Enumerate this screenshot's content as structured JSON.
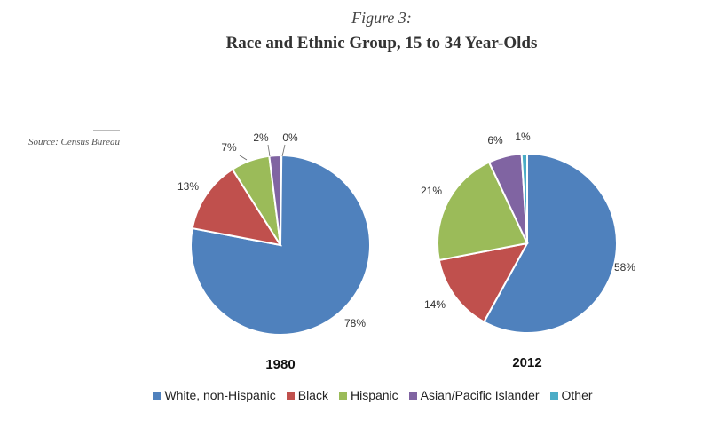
{
  "figure": {
    "label": "Figure 3:",
    "title": "Race and Ethnic Group, 15 to 34 Year-Olds",
    "source": "Source: Census Bureau"
  },
  "chart_data": [
    {
      "type": "pie",
      "title": "1980",
      "categories": [
        "White, non-Hispanic",
        "Black",
        "Hispanic",
        "Asian/Pacific Islander",
        "Other"
      ],
      "values": [
        78,
        13,
        7,
        2,
        0
      ],
      "labels": [
        "78%",
        "13%",
        "7%",
        "2%",
        "0%"
      ]
    },
    {
      "type": "pie",
      "title": "2012",
      "categories": [
        "White, non-Hispanic",
        "Black",
        "Hispanic",
        "Asian/Pacific Islander",
        "Other"
      ],
      "values": [
        58,
        14,
        21,
        6,
        1
      ],
      "labels": [
        "58%",
        "14%",
        "21%",
        "6%",
        "1%"
      ]
    }
  ],
  "legend": [
    {
      "label": "White, non-Hispanic",
      "color": "#4f81bd"
    },
    {
      "label": "Black",
      "color": "#c0504d"
    },
    {
      "label": "Hispanic",
      "color": "#9bbb59"
    },
    {
      "label": "Asian/Pacific Islander",
      "color": "#8064a2"
    },
    {
      "label": "Other",
      "color": "#4bacc6"
    }
  ]
}
